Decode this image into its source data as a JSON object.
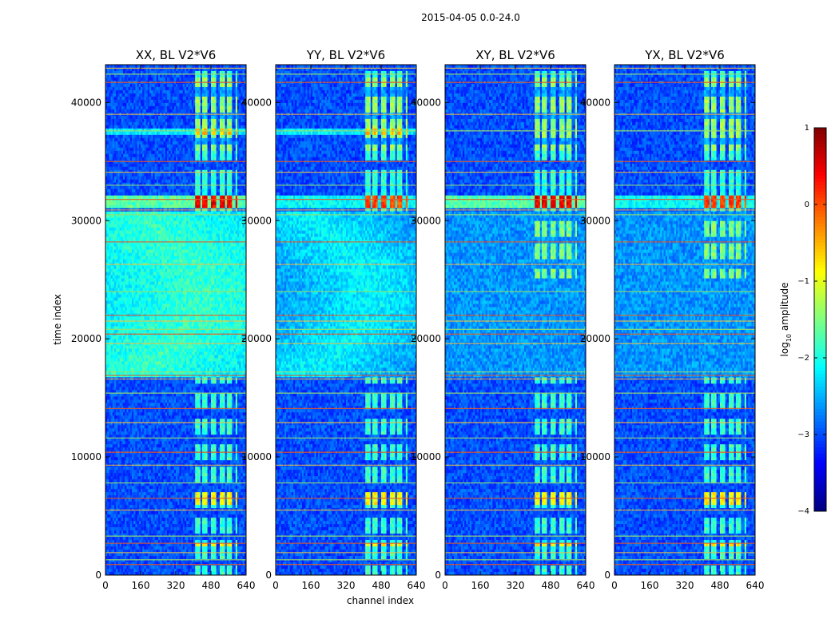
{
  "suptitle": "2015-04-05 0.0-24.0",
  "chart_data": {
    "type": "heatmap",
    "xlabel": "channel index",
    "ylabel": "time index",
    "xlim": [
      0,
      640
    ],
    "ylim": [
      0,
      43200
    ],
    "xticks": [
      0,
      160,
      320,
      480,
      640
    ],
    "yticks": [
      0,
      10000,
      20000,
      30000,
      40000
    ],
    "colorbar": {
      "label": "log10 amplitude",
      "label_base": "log",
      "label_sub": "10",
      "label_rest": " amplitude",
      "range": [
        -4,
        1
      ],
      "ticks": [
        -4,
        -3,
        -2,
        -1,
        0,
        1
      ],
      "tick_labels": [
        "−4",
        "−3",
        "−2",
        "−1",
        "0",
        "1"
      ],
      "colormap": "jet"
    },
    "panels": [
      {
        "title": "XX, BL V2*V6",
        "pol": "XX"
      },
      {
        "title": "YY, BL V2*V6",
        "pol": "YY"
      },
      {
        "title": "XY, BL V2*V6",
        "pol": "XY"
      },
      {
        "title": "YX, BL V2*V6",
        "pol": "YX"
      }
    ]
  }
}
